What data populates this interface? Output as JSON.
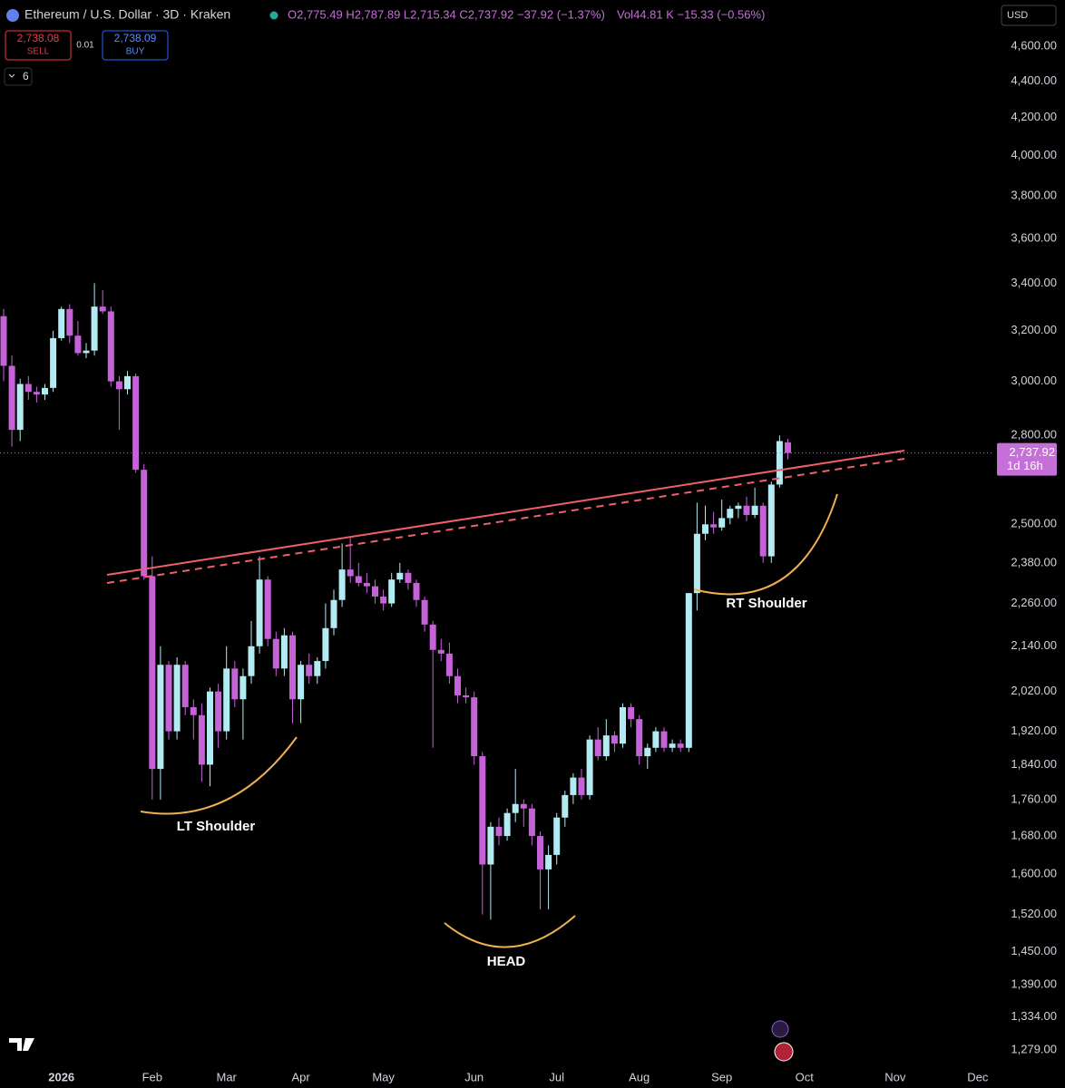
{
  "ui": {
    "sell_price": "2,738.08",
    "sell": "SELL",
    "spread": "0.01",
    "buy_price": "2,738.09",
    "buy": "BUY",
    "indicators": "6",
    "currency": "USD"
  },
  "chart_data": {
    "type": "candlestick",
    "title": "Ethereum / U.S. Dollar · 3D · Kraken",
    "legend_text": "O2,775.49 H2,787.89 L2,715.34 C2,737.92 −37.92 (−1.37%)",
    "volume_text": "Vol44.81 K −15.33 (−0.56%)",
    "price_label": "2,737.92",
    "countdown": "1d 16h",
    "annotations": [
      "LT Shoulder",
      "HEAD",
      "RT Shoulder"
    ],
    "log": true,
    "up_color": "#b2ebf2",
    "down_color": "#c562d8",
    "ylim": [
      1254,
      4879
    ],
    "yticks": [
      {
        "value": 1279,
        "label": "1,279.00"
      },
      {
        "value": 1334,
        "label": "1,334.00"
      },
      {
        "value": 1390,
        "label": "1,390.00"
      },
      {
        "value": 1450,
        "label": "1,450.00"
      },
      {
        "value": 1520,
        "label": "1,520.00"
      },
      {
        "value": 1600,
        "label": "1,600.00"
      },
      {
        "value": 1680,
        "label": "1,680.00"
      },
      {
        "value": 1760,
        "label": "1,760.00"
      },
      {
        "value": 1840,
        "label": "1,840.00"
      },
      {
        "value": 1920,
        "label": "1,920.00"
      },
      {
        "value": 2020,
        "label": "2,020.00"
      },
      {
        "value": 2140,
        "label": "2,140.00"
      },
      {
        "value": 2260,
        "label": "2,260.00"
      },
      {
        "value": 2380,
        "label": "2,380.00"
      },
      {
        "value": 2500,
        "label": "2,500.00"
      },
      {
        "value": 2800,
        "label": "2,800.00"
      },
      {
        "value": 3000,
        "label": "3,000.00"
      },
      {
        "value": 3200,
        "label": "3,200.00"
      },
      {
        "value": 3400,
        "label": "3,400.00"
      },
      {
        "value": 3600,
        "label": "3,600.00"
      },
      {
        "value": 3800,
        "label": "3,800.00"
      },
      {
        "value": 4000,
        "label": "4,000.00"
      },
      {
        "value": 4200,
        "label": "4,200.00"
      },
      {
        "value": 4400,
        "label": "4,400.00"
      },
      {
        "value": 4600,
        "label": "4,600.00"
      }
    ],
    "categories": [
      null,
      null,
      null,
      null,
      null,
      null,
      null,
      "2026",
      null,
      null,
      null,
      null,
      null,
      null,
      null,
      null,
      null,
      null,
      "Feb",
      null,
      null,
      null,
      null,
      null,
      null,
      null,
      null,
      "Mar",
      null,
      null,
      null,
      null,
      null,
      null,
      null,
      null,
      "Apr",
      null,
      null,
      null,
      null,
      null,
      null,
      null,
      null,
      null,
      "May",
      null,
      null,
      null,
      null,
      null,
      null,
      null,
      null,
      null,
      null,
      "Jun",
      null,
      null,
      null,
      null,
      null,
      null,
      null,
      null,
      null,
      "Jul",
      null,
      null,
      null,
      null,
      null,
      null,
      null,
      null,
      null,
      "Aug",
      null,
      null,
      null,
      null,
      null,
      null,
      null,
      null,
      null,
      "Sep",
      null,
      null,
      null,
      null,
      null,
      null,
      null,
      null,
      null,
      "Oct",
      null,
      null,
      null,
      null,
      null,
      null,
      null,
      null,
      null,
      null,
      "Nov",
      null,
      null,
      null,
      null,
      null,
      null,
      null,
      null,
      null,
      "Dec",
      null
    ],
    "open": [
      3260,
      3060,
      2820,
      2990,
      2960,
      2950,
      2975,
      3170,
      3290,
      3180,
      3110,
      3120,
      3300,
      3280,
      3000,
      2970,
      3020,
      2680,
      2340,
      1830,
      2090,
      1920,
      2090,
      1980,
      1960,
      1840,
      2020,
      1920,
      2080,
      2000,
      2060,
      2140,
      2330,
      2160,
      2080,
      2170,
      2000,
      2090,
      2060,
      2100,
      2190,
      2270,
      2360,
      2340,
      2320,
      2310,
      2280,
      2260,
      2330,
      2350,
      2320,
      2270,
      2200,
      2130,
      2120,
      2060,
      2010,
      2005,
      1860,
      1620,
      1700,
      1680,
      1730,
      1750,
      1740,
      1680,
      1610,
      1640,
      1720,
      1770,
      1810,
      1770,
      1900,
      1860,
      1910,
      1890,
      1980,
      1950,
      1860,
      1880,
      1920,
      1880,
      1890,
      1880,
      2290,
      2470,
      2500,
      2490,
      2520,
      2550,
      2560,
      2530,
      2560,
      2400,
      2630,
      2775.49,
      null,
      null,
      null,
      null,
      null,
      null,
      null,
      null,
      null,
      null,
      null,
      null,
      null,
      null,
      null,
      null,
      null,
      null,
      null,
      null,
      null,
      null,
      null,
      null
    ],
    "high": [
      3290,
      3100,
      3010,
      3020,
      2980,
      2990,
      3200,
      3300,
      3310,
      3240,
      3150,
      3400,
      3370,
      3300,
      3020,
      3040,
      3030,
      2700,
      2400,
      2140,
      2100,
      2110,
      2100,
      2000,
      1990,
      2030,
      2040,
      2140,
      2100,
      2080,
      2210,
      2400,
      2340,
      2180,
      2190,
      2180,
      2100,
      2120,
      2110,
      2260,
      2300,
      2440,
      2460,
      2380,
      2350,
      2330,
      2300,
      2350,
      2380,
      2360,
      2330,
      2280,
      2210,
      2160,
      2150,
      2080,
      2030,
      2020,
      1870,
      1710,
      1720,
      1740,
      1830,
      1760,
      1750,
      1690,
      1660,
      1730,
      1780,
      1820,
      1830,
      1910,
      1930,
      1950,
      1920,
      1990,
      1990,
      1960,
      1890,
      1930,
      1930,
      1900,
      1900,
      2290,
      2570,
      2560,
      2540,
      2580,
      2560,
      2570,
      2590,
      2620,
      2570,
      2640,
      2800,
      2787.89,
      null,
      null,
      null,
      null,
      null,
      null,
      null,
      null,
      null,
      null,
      null,
      null,
      null,
      null,
      null,
      null,
      null,
      null,
      null,
      null,
      null,
      null,
      null,
      null
    ],
    "low": [
      3000,
      2760,
      2780,
      2930,
      2920,
      2930,
      2960,
      3160,
      3150,
      3100,
      3090,
      3100,
      3270,
      2980,
      2820,
      2950,
      2670,
      2330,
      1760,
      1760,
      1900,
      1900,
      1960,
      1900,
      1800,
      1790,
      1880,
      1900,
      1980,
      1900,
      2040,
      2120,
      2140,
      2060,
      2060,
      1940,
      1940,
      2040,
      2040,
      2080,
      2170,
      2250,
      2320,
      2310,
      2290,
      2260,
      2240,
      2250,
      2320,
      2300,
      2250,
      2180,
      1880,
      2100,
      2040,
      1990,
      1990,
      1840,
      1520,
      1510,
      1660,
      1670,
      1710,
      1700,
      1660,
      1530,
      1530,
      1620,
      1700,
      1750,
      1760,
      1760,
      1850,
      1850,
      1870,
      1880,
      1930,
      1840,
      1830,
      1870,
      1870,
      1870,
      1870,
      1870,
      2240,
      2450,
      2470,
      2480,
      2500,
      2520,
      2510,
      2520,
      2380,
      2380,
      2620,
      2715.34,
      null,
      null,
      null,
      null,
      null,
      null,
      null,
      null,
      null,
      null,
      null,
      null,
      null,
      null,
      null,
      null,
      null,
      null,
      null,
      null,
      null,
      null,
      null,
      null
    ],
    "close": [
      3060,
      2820,
      2990,
      2960,
      2950,
      2975,
      3170,
      3290,
      3180,
      3110,
      3120,
      3300,
      3280,
      3000,
      2970,
      3020,
      2680,
      2340,
      1830,
      2090,
      1920,
      2090,
      1980,
      1960,
      1840,
      2020,
      1920,
      2080,
      2000,
      2060,
      2140,
      2330,
      2160,
      2080,
      2170,
      2000,
      2090,
      2060,
      2100,
      2190,
      2270,
      2360,
      2340,
      2320,
      2310,
      2280,
      2260,
      2330,
      2350,
      2320,
      2270,
      2200,
      2130,
      2120,
      2060,
      2010,
      2005,
      1860,
      1620,
      1700,
      1680,
      1730,
      1750,
      1740,
      1680,
      1610,
      1640,
      1720,
      1770,
      1810,
      1770,
      1900,
      1860,
      1910,
      1890,
      1980,
      1950,
      1860,
      1880,
      1920,
      1880,
      1890,
      1880,
      2290,
      2470,
      2500,
      2490,
      2520,
      2550,
      2560,
      2530,
      2560,
      2400,
      2630,
      2780,
      2737.92,
      null,
      null,
      null,
      null,
      null,
      null,
      null,
      null,
      null,
      null,
      null,
      null,
      null,
      null,
      null,
      null,
      null,
      null,
      null,
      null,
      null,
      null,
      null,
      null
    ]
  }
}
